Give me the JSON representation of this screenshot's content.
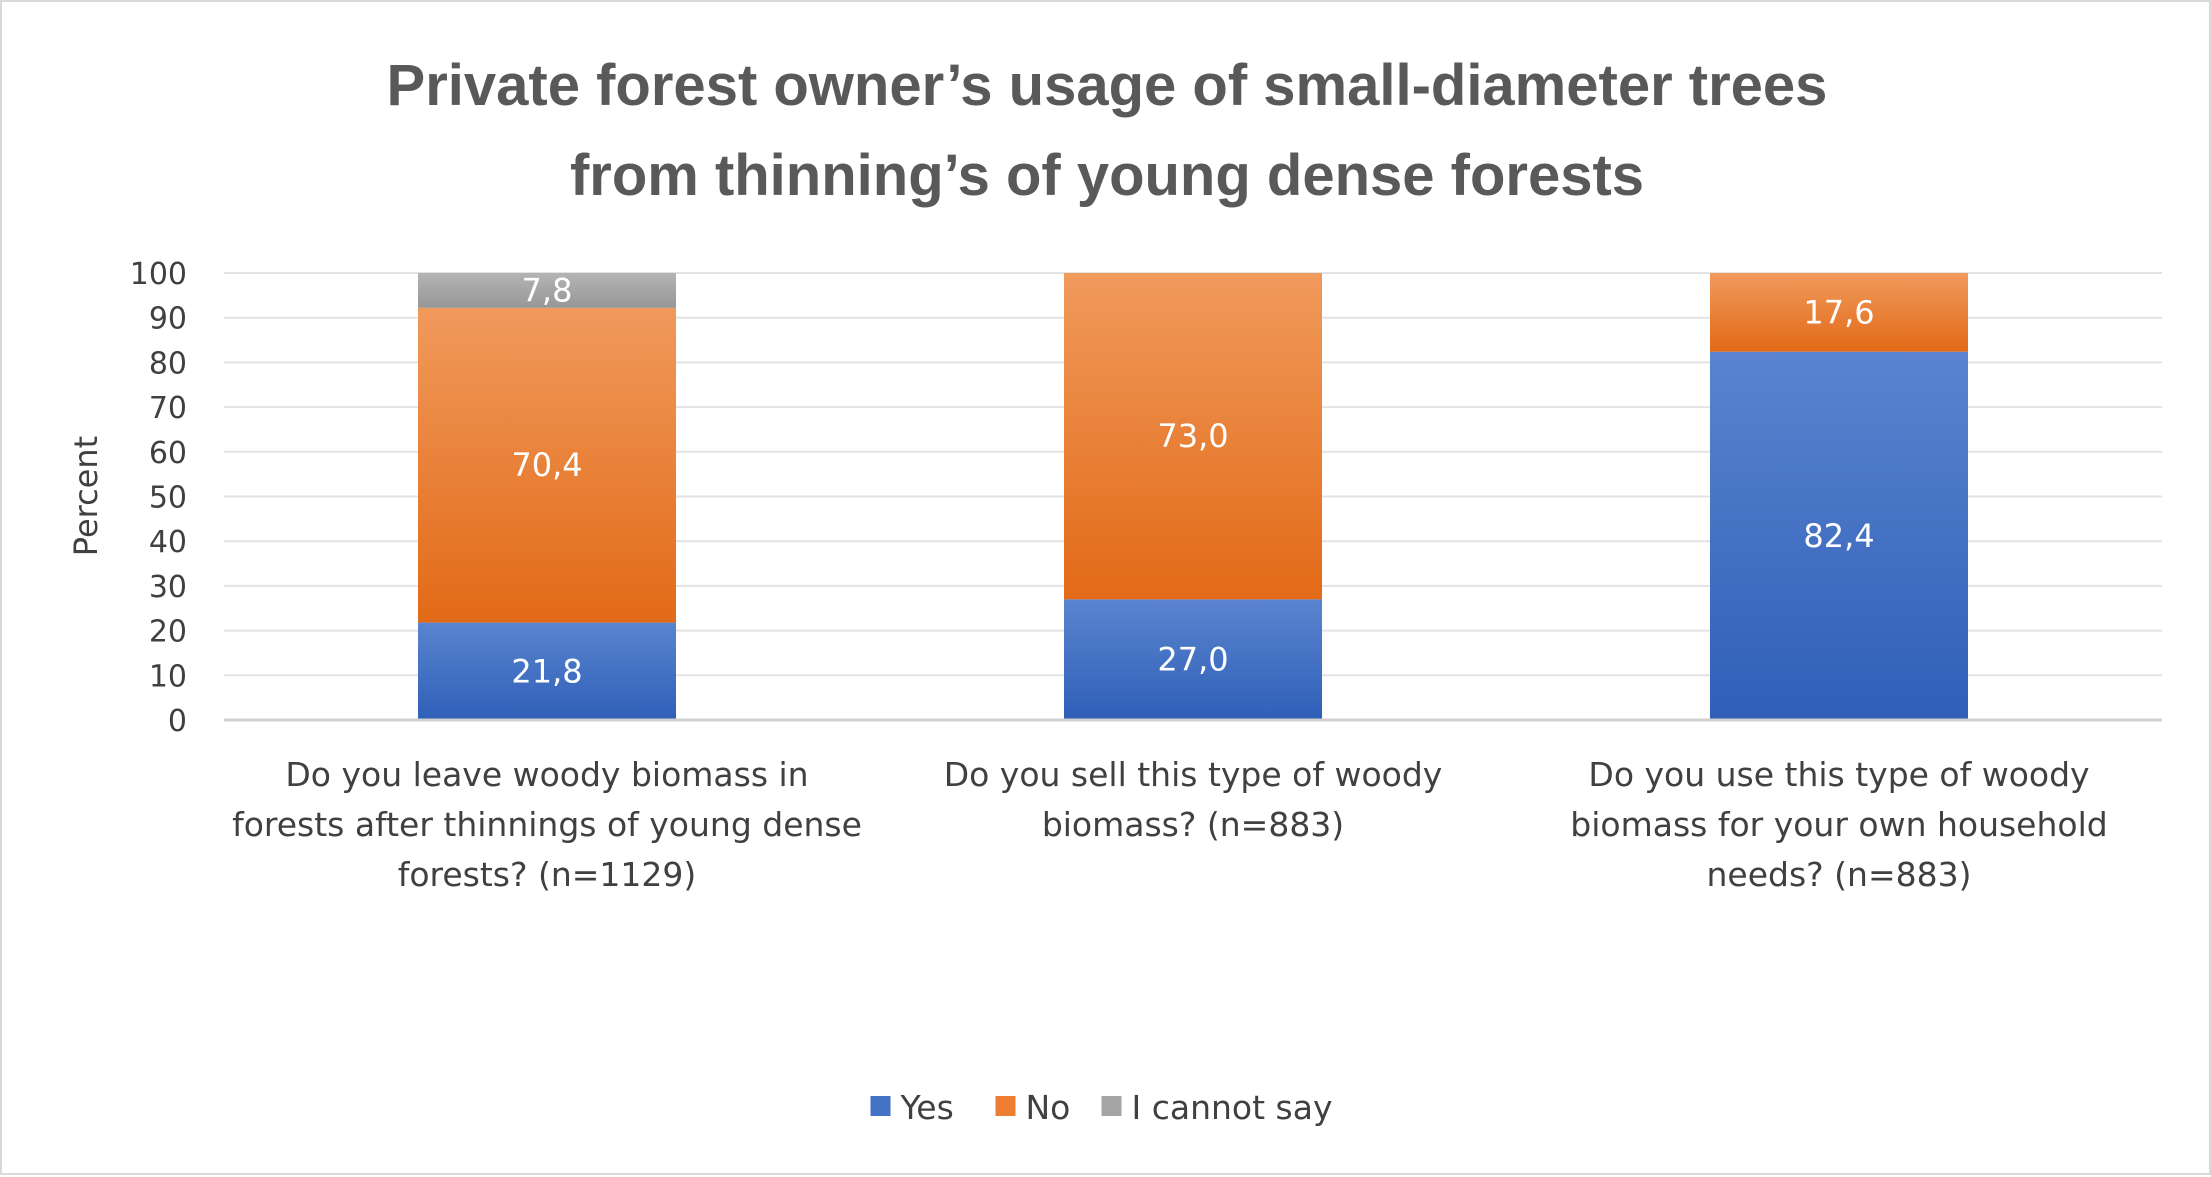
{
  "chart_data": {
    "type": "bar",
    "stacked": true,
    "title": "Private forest owner’s usage of small-diameter trees from thinning’s of young dense forests",
    "title_lines": [
      "Private forest owner’s usage of small-diameter trees",
      "from thinning’s of young dense forests"
    ],
    "ylabel": "Percent",
    "xlabel": "",
    "ylim": [
      0,
      100
    ],
    "yticks": [
      0,
      10,
      20,
      30,
      40,
      50,
      60,
      70,
      80,
      90,
      100
    ],
    "grid": true,
    "legend_position": "bottom-center",
    "categories": [
      "Do you leave woody biomass in forests after thinnings of young dense forests? (n=1129)",
      "Do you sell this type of woody biomass? (n=883)",
      "Do you use this type of woody biomass for your own household needs? (n=883)"
    ],
    "category_lines": [
      [
        "Do you leave woody biomass in",
        "forests after thinnings of young dense",
        "forests? (n=1129)"
      ],
      [
        "Do you sell this type of woody",
        "biomass? (n=883)"
      ],
      [
        "Do you use this type of woody",
        "biomass for your own household",
        "needs? (n=883)"
      ]
    ],
    "series": [
      {
        "name": "Yes",
        "color": "#4472c4",
        "values": [
          21.8,
          27.0,
          82.4
        ],
        "labels": [
          "21,8",
          "27,0",
          "82,4"
        ]
      },
      {
        "name": "No",
        "color": "#ed7d31",
        "values": [
          70.4,
          73.0,
          17.6
        ],
        "labels": [
          "70,4",
          "73,0",
          "17,6"
        ]
      },
      {
        "name": "I cannot say",
        "color": "#a5a5a5",
        "values": [
          7.8,
          0,
          0
        ],
        "labels": [
          "7,8",
          "",
          ""
        ]
      }
    ]
  }
}
